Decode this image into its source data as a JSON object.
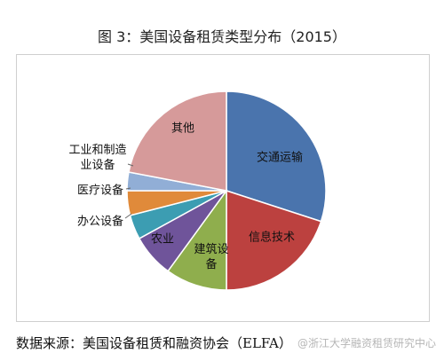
{
  "title": "图 3：美国设备租赁类型分布（2015）",
  "source": "数据来源：美国设备租赁和融资协会（ELFA）",
  "watermark": "@浙江大学融资租赁研究中心",
  "chart_data": {
    "type": "pie",
    "title": "图 3：美国设备租赁类型分布（2015）",
    "categories": [
      "交通运输",
      "信息技术",
      "建筑设备",
      "农业",
      "办公设备",
      "医疗设备",
      "工业和制造业设备",
      "其他"
    ],
    "values": [
      30,
      20,
      10,
      7,
      4,
      4,
      3,
      22
    ],
    "colors": [
      "#4a74ad",
      "#bc413f",
      "#8fae4d",
      "#6f549a",
      "#3c9db2",
      "#e08a3a",
      "#91aed6",
      "#d69a9a"
    ],
    "labels": [
      {
        "lines": [
          "交通运输"
        ]
      },
      {
        "lines": [
          "信息技术"
        ]
      },
      {
        "lines": [
          "建筑设",
          "备"
        ]
      },
      {
        "lines": [
          "农业"
        ]
      },
      {
        "lines": [
          "办公设备"
        ]
      },
      {
        "lines": [
          "医疗设备"
        ]
      },
      {
        "lines": [
          "工业和制造",
          "业设备"
        ]
      },
      {
        "lines": [
          "其他"
        ]
      }
    ]
  }
}
